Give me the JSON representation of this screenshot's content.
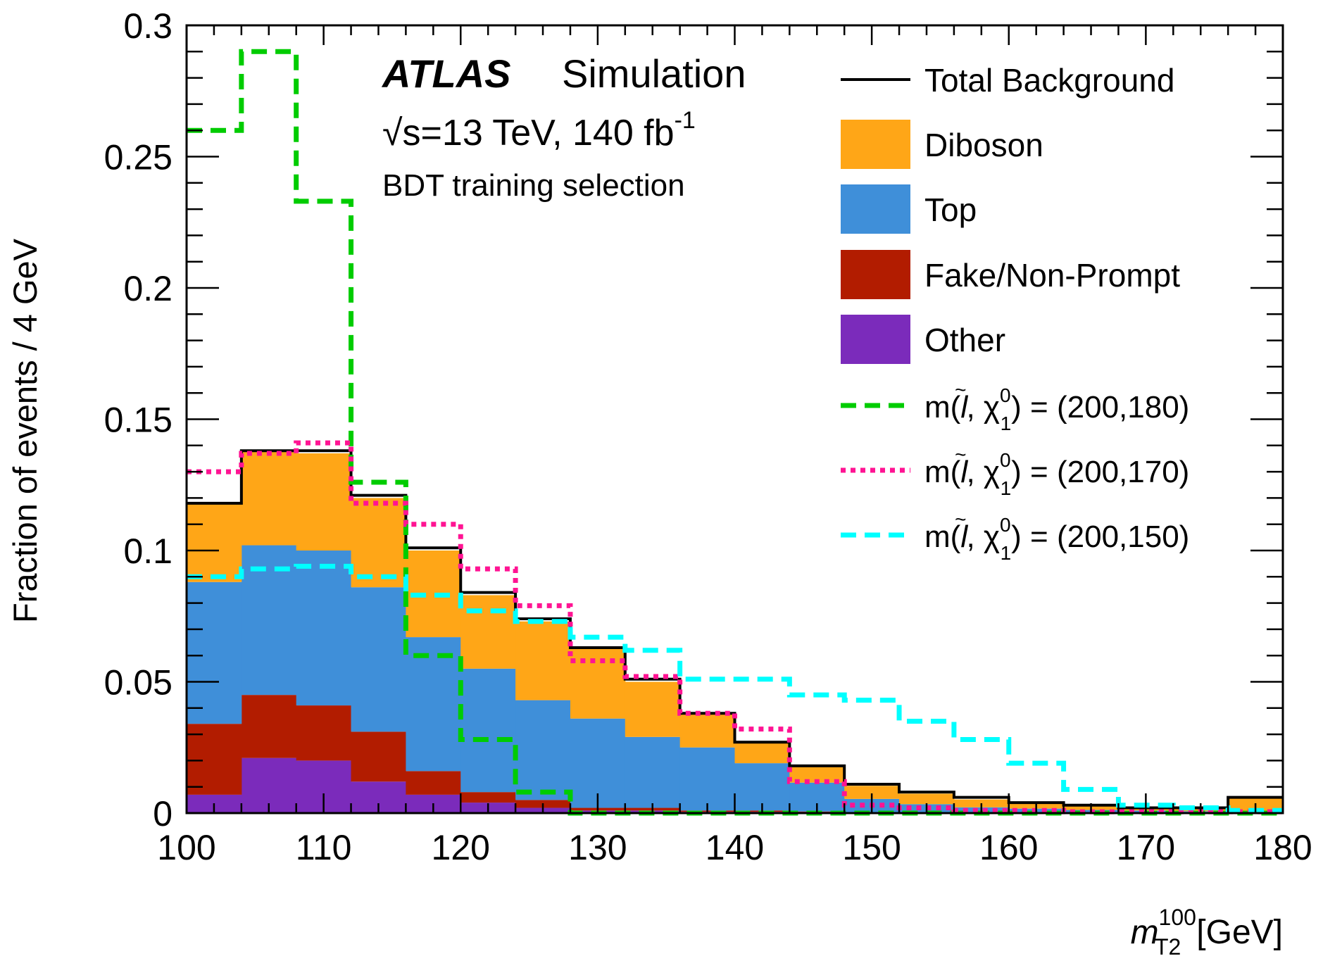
{
  "chart_data": {
    "type": "histogram",
    "xlabel": "m",
    "xlabel_sup": "100",
    "xlabel_sub": "T2",
    "xlabel_unit": "[GeV]",
    "ylabel": "Fraction of events / 4 GeV",
    "xlim": [
      100,
      180
    ],
    "ylim": [
      0,
      0.3
    ],
    "bin_width": 4,
    "x_ticks": [
      100,
      110,
      120,
      130,
      140,
      150,
      160,
      170,
      180
    ],
    "x_tick_labels": [
      "100",
      "110",
      "120",
      "130",
      "140",
      "150",
      "160",
      "170",
      "180"
    ],
    "y_ticks": [
      0,
      0.05,
      0.1,
      0.15,
      0.2,
      0.25,
      0.3
    ],
    "y_tick_labels": [
      "0",
      "0.05",
      "0.1",
      "0.15",
      "0.2",
      "0.25",
      "0.3"
    ],
    "bin_edges": [
      100,
      104,
      108,
      112,
      116,
      120,
      124,
      128,
      132,
      136,
      140,
      144,
      148,
      152,
      156,
      160,
      164,
      168,
      172,
      176,
      180
    ],
    "annotation": {
      "experiment": "ATLAS",
      "label": "Simulation",
      "energy_prefix": "√s=13 TeV, 140 fb",
      "energy_sup": "-1",
      "selection": "BDT training selection"
    },
    "stacked_series": [
      {
        "name": "Other",
        "color": "#7b2bbb",
        "values": [
          0.007,
          0.021,
          0.02,
          0.012,
          0.007,
          0.004,
          0.002,
          0.001,
          0.001,
          0.0005,
          0.0005,
          0.0003,
          0.0002,
          0.0002,
          0.0001,
          0.0001,
          0.0001,
          0.0001,
          0.0001,
          0.0001
        ]
      },
      {
        "name": "Fake/Non-Prompt",
        "color": "#b21c00",
        "values": [
          0.027,
          0.024,
          0.021,
          0.019,
          0.009,
          0.004,
          0.003,
          0.001,
          0.001,
          0.0005,
          0.0005,
          0.0003,
          0.0002,
          0.0002,
          0.0001,
          0.0001,
          0.0001,
          0.0001,
          0.0001,
          0.0001
        ]
      },
      {
        "name": "Top",
        "color": "#3f8fd9",
        "values": [
          0.054,
          0.057,
          0.059,
          0.055,
          0.051,
          0.047,
          0.038,
          0.034,
          0.027,
          0.024,
          0.018,
          0.011,
          0.005,
          0.003,
          0.002,
          0.0015,
          0.001,
          0.0008,
          0.0005,
          0.0005
        ]
      },
      {
        "name": "Diboson",
        "color": "#ffa617",
        "values": [
          0.03,
          0.036,
          0.037,
          0.034,
          0.033,
          0.028,
          0.03,
          0.027,
          0.021,
          0.013,
          0.008,
          0.006,
          0.005,
          0.004,
          0.003,
          0.002,
          0.002,
          0.001,
          0.001,
          0.005
        ]
      }
    ],
    "total_background": {
      "name": "Total Background",
      "color": "#000000",
      "values": [
        0.118,
        0.138,
        0.138,
        0.121,
        0.101,
        0.084,
        0.074,
        0.063,
        0.051,
        0.038,
        0.027,
        0.018,
        0.011,
        0.008,
        0.006,
        0.004,
        0.003,
        0.002,
        0.002,
        0.006
      ]
    },
    "signal_series": [
      {
        "name_prefix": "m(",
        "name_l": "l",
        "name_chi": "χ",
        "name_chi_sup": "0",
        "name_chi_sub": "1",
        "name_suffix": ") = (200,180)",
        "color": "#00cc00",
        "style": "dashed",
        "values": [
          0.26,
          0.29,
          0.233,
          0.126,
          0.06,
          0.028,
          0.008,
          0.0,
          0.0,
          0.0,
          0.0,
          0.0,
          0.0,
          0.0,
          0.0,
          0.0,
          0.0,
          0.0,
          0.0,
          0.0
        ]
      },
      {
        "name_prefix": "m(",
        "name_l": "l",
        "name_chi": "χ",
        "name_chi_sup": "0",
        "name_chi_sub": "1",
        "name_suffix": ") = (200,170)",
        "color": "#ff1493",
        "style": "dotted",
        "values": [
          0.13,
          0.137,
          0.141,
          0.118,
          0.11,
          0.093,
          0.079,
          0.058,
          0.052,
          0.038,
          0.032,
          0.012,
          0.003,
          0.002,
          0.001,
          0.001,
          0.0005,
          0.0005,
          0.0005,
          0.0005
        ]
      },
      {
        "name_prefix": "m(",
        "name_l": "l",
        "name_chi": "χ",
        "name_chi_sup": "0",
        "name_chi_sub": "1",
        "name_suffix": ") = (200,150)",
        "color": "#00ffff",
        "style": "dashed",
        "values": [
          0.09,
          0.093,
          0.094,
          0.09,
          0.083,
          0.077,
          0.073,
          0.067,
          0.062,
          0.051,
          0.051,
          0.045,
          0.043,
          0.035,
          0.028,
          0.019,
          0.009,
          0.003,
          0.002,
          0.001
        ]
      }
    ],
    "legend_order": [
      "Total Background",
      "Diboson",
      "Top",
      "Fake/Non-Prompt",
      "Other",
      "sig0",
      "sig1",
      "sig2"
    ],
    "legend_position": "top-right"
  }
}
